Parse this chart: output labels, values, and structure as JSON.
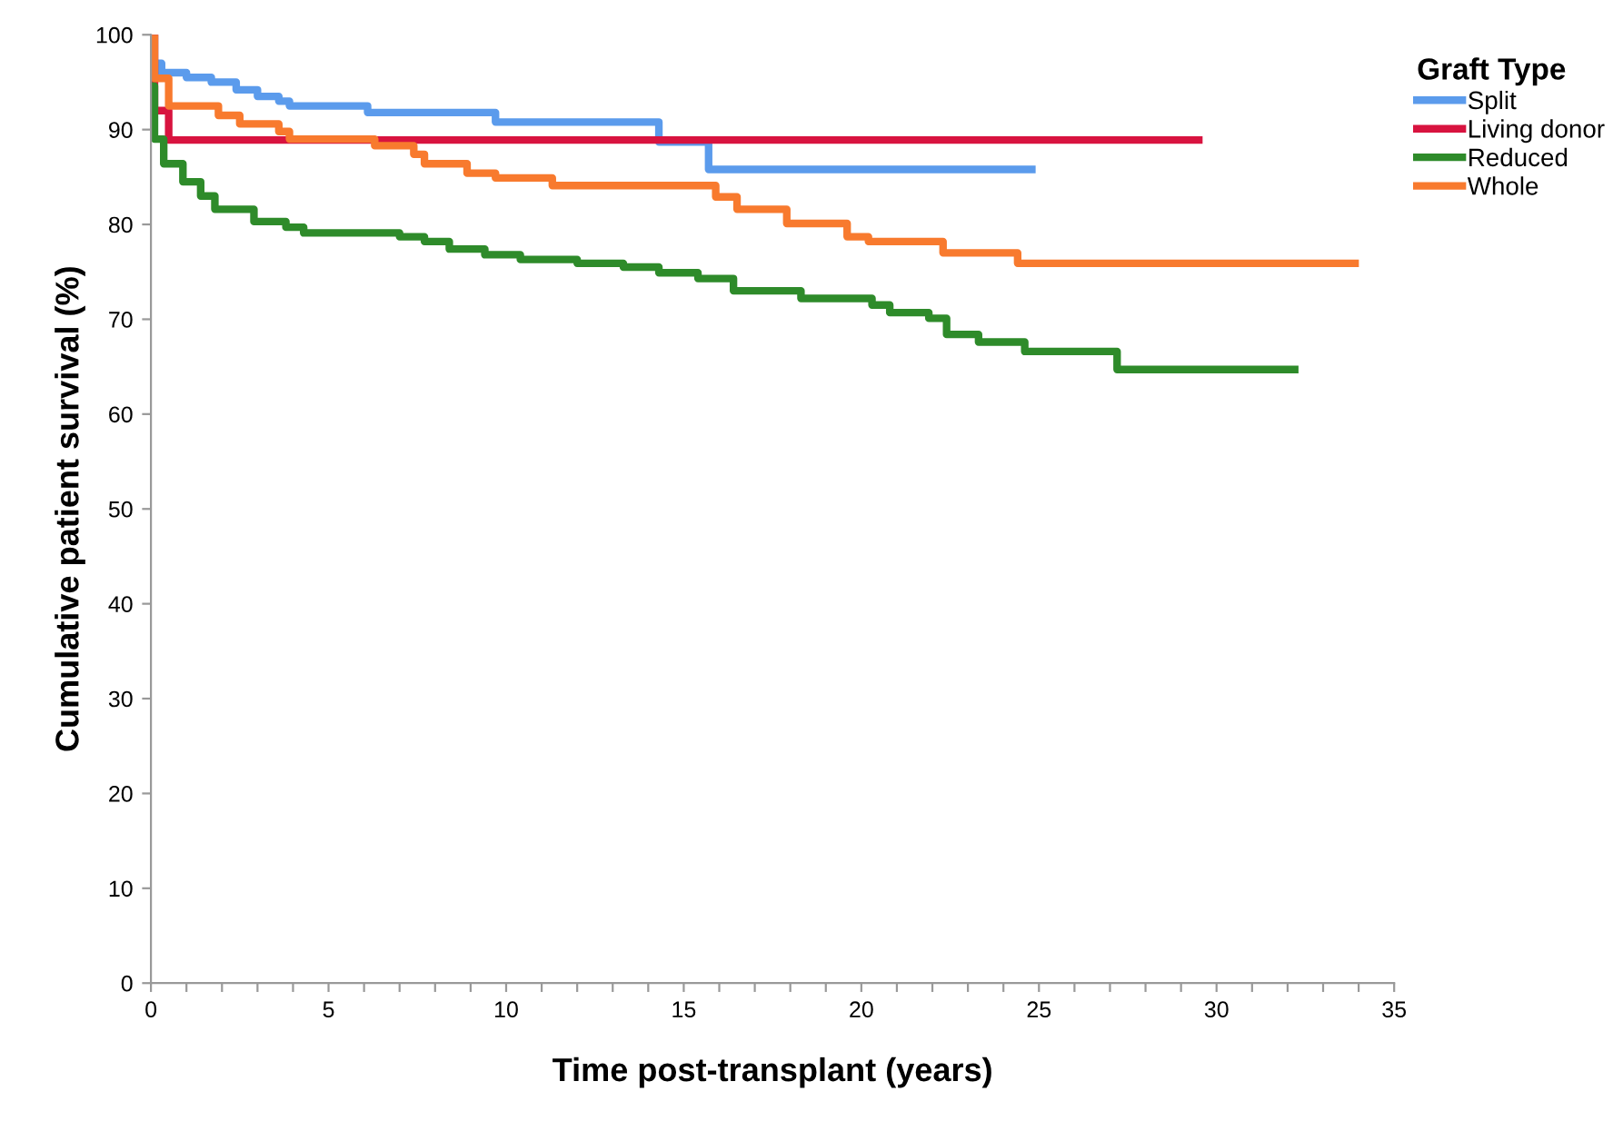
{
  "chart_data": {
    "type": "step",
    "xlabel": "Time post-transplant (years)",
    "ylabel": "Cumulative patient survival (%)",
    "legend_title": "Graft Type",
    "xlim": [
      0,
      35
    ],
    "ylim": [
      0,
      100
    ],
    "xticks": [
      0,
      {
        "value": 1,
        "label": null
      },
      {
        "value": 2,
        "label": null
      },
      {
        "value": 3,
        "label": null
      },
      {
        "value": 4,
        "label": null
      },
      5,
      {
        "value": 6,
        "label": null
      },
      {
        "value": 7,
        "label": null
      },
      {
        "value": 8,
        "label": null
      },
      {
        "value": 9,
        "label": null
      },
      10,
      {
        "value": 11,
        "label": null
      },
      {
        "value": 12,
        "label": null
      },
      {
        "value": 13,
        "label": null
      },
      {
        "value": 14,
        "label": null
      },
      15,
      {
        "value": 16,
        "label": null
      },
      {
        "value": 17,
        "label": null
      },
      {
        "value": 18,
        "label": null
      },
      {
        "value": 19,
        "label": null
      },
      20,
      {
        "value": 21,
        "label": null
      },
      {
        "value": 22,
        "label": null
      },
      {
        "value": 23,
        "label": null
      },
      {
        "value": 24,
        "label": null
      },
      25,
      {
        "value": 26,
        "label": null
      },
      {
        "value": 27,
        "label": null
      },
      {
        "value": 28,
        "label": null
      },
      {
        "value": 29,
        "label": null
      },
      30,
      {
        "value": 31,
        "label": null
      },
      {
        "value": 32,
        "label": null
      },
      {
        "value": 33,
        "label": null
      },
      {
        "value": 34,
        "label": null
      },
      35
    ],
    "yticks": [
      0,
      10,
      20,
      30,
      40,
      50,
      60,
      70,
      80,
      90,
      100
    ],
    "grid": false,
    "legend": "top right",
    "line_style": "solid",
    "marker": "none",
    "series": [
      {
        "name": "Split",
        "color": "#5b9bec",
        "x": [
          0,
          0.1,
          0.3,
          1.0,
          1.7,
          2.4,
          3.0,
          3.6,
          3.9,
          6.1,
          9.7,
          14.3,
          15.7,
          24.8
        ],
        "values": [
          100,
          97,
          96,
          95.5,
          95,
          94.2,
          93.5,
          93,
          92.5,
          91.8,
          90.8,
          88.7,
          85.8,
          85.8
        ]
      },
      {
        "name": "Living donor",
        "color": "#d8133f",
        "x": [
          0,
          0.1,
          0.5,
          29.5
        ],
        "values": [
          100,
          92,
          88.9,
          88.9
        ]
      },
      {
        "name": "Reduced",
        "color": "#2e8b2a",
        "x": [
          0,
          0.1,
          0.36,
          0.9,
          1.4,
          1.8,
          2.9,
          3.8,
          4.3,
          7.0,
          7.7,
          8.4,
          9.4,
          10.4,
          12.0,
          13.3,
          14.3,
          15.4,
          16.4,
          18.3,
          20.3,
          20.8,
          21.9,
          22.4,
          23.3,
          24.6,
          27.2,
          32.2
        ],
        "values": [
          94.6,
          89,
          86.4,
          84.5,
          83,
          81.6,
          80.3,
          79.7,
          79.1,
          78.7,
          78.2,
          77.4,
          76.8,
          76.3,
          75.9,
          75.5,
          74.9,
          74.3,
          73,
          72.2,
          71.5,
          70.7,
          70.1,
          68.4,
          67.6,
          66.6,
          64.7,
          64.7
        ]
      },
      {
        "name": "Whole",
        "color": "#f87a2e",
        "x": [
          0,
          0.1,
          0.5,
          1.9,
          2.5,
          3.6,
          3.9,
          6.3,
          7.4,
          7.7,
          8.9,
          9.7,
          11.3,
          15.9,
          16.5,
          17.9,
          19.6,
          20.2,
          22.3,
          24.4,
          33.9
        ],
        "values": [
          100,
          95.4,
          92.5,
          91.5,
          90.6,
          89.8,
          89,
          88.3,
          87.4,
          86.4,
          85.4,
          84.9,
          84.1,
          82.9,
          81.6,
          80.1,
          78.7,
          78.2,
          77,
          75.9,
          75.9
        ]
      }
    ]
  }
}
